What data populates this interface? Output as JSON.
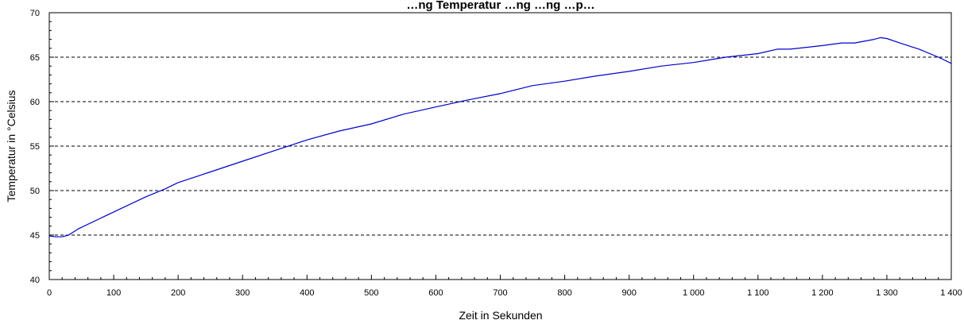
{
  "chart_data": {
    "type": "line",
    "title": "…ng Temperatur …ng …ng …p…",
    "xlabel": "Zeit in Sekunden",
    "ylabel": "Temperatur in °Celsius",
    "xlim": [
      0,
      1400
    ],
    "ylim": [
      40,
      70
    ],
    "x_ticks": [
      0,
      100,
      200,
      300,
      400,
      500,
      600,
      700,
      800,
      900,
      1000,
      1100,
      1200,
      1300,
      1400
    ],
    "x_tick_labels": [
      "0",
      "100",
      "200",
      "300",
      "400",
      "500",
      "600",
      "700",
      "800",
      "900",
      "1 000",
      "1 100",
      "1 200",
      "1 300",
      "1 400"
    ],
    "y_ticks": [
      40,
      45,
      50,
      55,
      60,
      65,
      70
    ],
    "y_tick_labels": [
      "40",
      "45",
      "50",
      "55",
      "60",
      "65",
      "70"
    ],
    "grid": {
      "horizontal": true,
      "style": "dashed",
      "values": [
        45,
        50,
        55,
        60,
        65
      ]
    },
    "legend": "none",
    "series": [
      {
        "color": "#0000cc",
        "x": [
          0,
          10,
          20,
          30,
          45,
          100,
          150,
          180,
          200,
          250,
          300,
          350,
          400,
          450,
          500,
          550,
          600,
          650,
          700,
          750,
          800,
          850,
          900,
          950,
          1000,
          1050,
          1100,
          1130,
          1150,
          1200,
          1230,
          1250,
          1280,
          1290,
          1300,
          1320,
          1350,
          1380,
          1400
        ],
        "y": [
          44.9,
          44.8,
          44.8,
          45.0,
          45.7,
          47.6,
          49.3,
          50.2,
          50.9,
          52.1,
          53.3,
          54.5,
          55.7,
          56.7,
          57.5,
          58.6,
          59.4,
          60.2,
          60.9,
          61.8,
          62.3,
          62.9,
          63.4,
          64.0,
          64.4,
          65.0,
          65.4,
          65.9,
          65.9,
          66.3,
          66.6,
          66.6,
          67.0,
          67.2,
          67.1,
          66.6,
          65.9,
          65.0,
          64.3
        ]
      }
    ]
  }
}
